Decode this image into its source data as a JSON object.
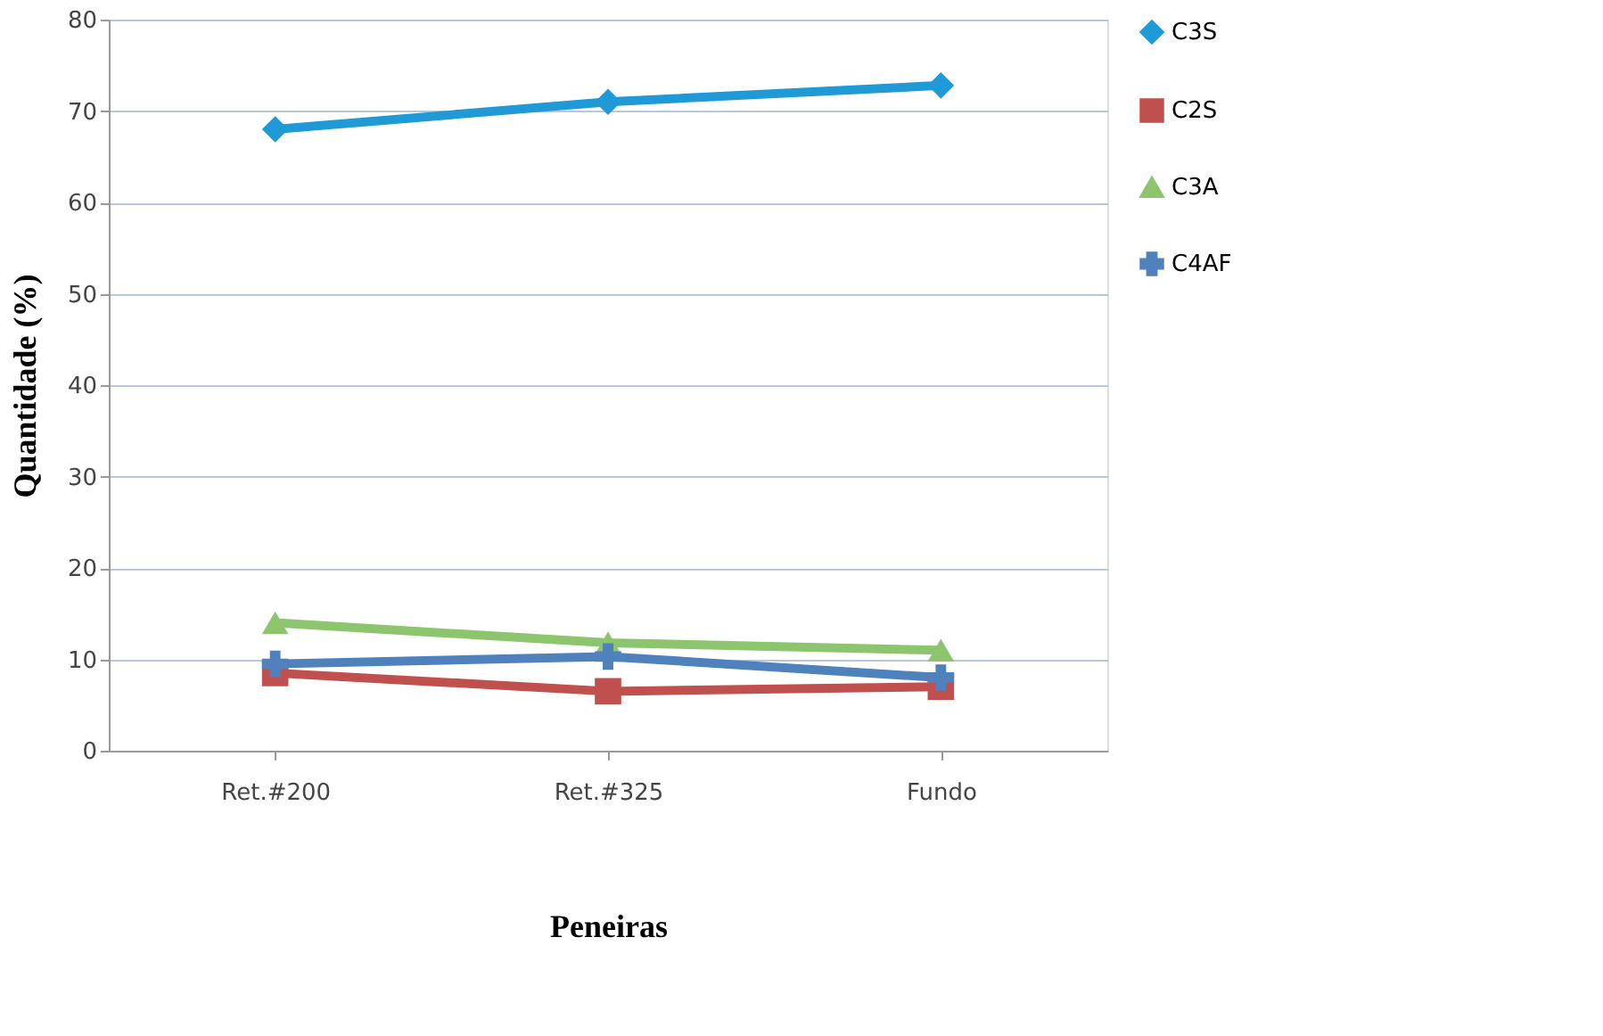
{
  "chart_data": {
    "type": "line",
    "xlabel": "Peneiras",
    "ylabel": "Quantidade (%)",
    "categories": [
      "Ret.#200",
      "Ret.#325",
      "Fundo"
    ],
    "series": [
      {
        "name": "C3S",
        "color": "#1f9ad6",
        "marker": "diamond",
        "values": [
          68,
          71,
          72.8
        ]
      },
      {
        "name": "C2S",
        "color": "#c0504d",
        "marker": "square",
        "values": [
          8.5,
          6.5,
          7
        ]
      },
      {
        "name": "C3A",
        "color": "#8cc56e",
        "marker": "triangle",
        "values": [
          14,
          11.8,
          11
        ]
      },
      {
        "name": "C4AF",
        "color": "#4f81bd",
        "marker": "cross",
        "values": [
          9.5,
          10.3,
          8
        ]
      }
    ],
    "ylim": [
      0,
      80
    ],
    "yticks": [
      0,
      10,
      20,
      30,
      40,
      50,
      60,
      70,
      80
    ],
    "grid": "y",
    "legend": "right"
  }
}
